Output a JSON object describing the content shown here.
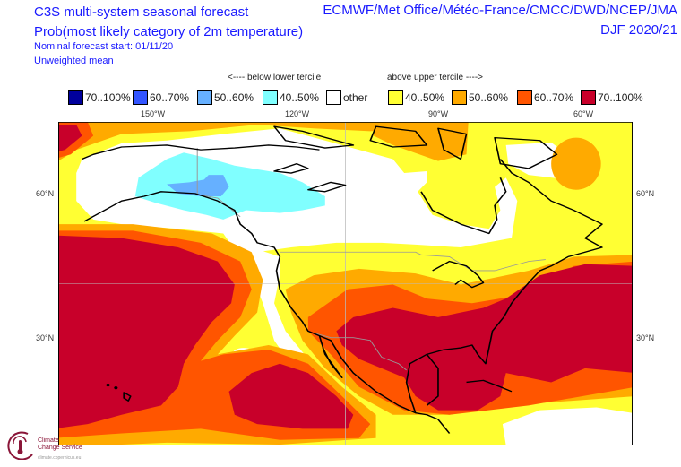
{
  "header": {
    "title": "C3S multi-system seasonal forecast",
    "subtitle": "Prob(most likely category of 2m temperature)",
    "start": "Nominal forecast start: 01/11/20",
    "mean": "Unweighted mean",
    "centres": "ECMWF/Met Office/Météo-France/CMCC/DWD/NCEP/JMA",
    "season": "DJF 2020/21"
  },
  "legend": {
    "below_label": "<---- below lower tercile",
    "above_label": "above upper tercile ---->",
    "items": [
      {
        "label": "70..100%",
        "color": "#00009c"
      },
      {
        "label": "60..70%",
        "color": "#3355ff"
      },
      {
        "label": "50..60%",
        "color": "#66b0ff"
      },
      {
        "label": "40..50%",
        "color": "#80ffff"
      },
      {
        "label": "other",
        "color": "#ffffff"
      },
      {
        "label": "40..50%",
        "color": "#ffff33"
      },
      {
        "label": "50..60%",
        "color": "#ffaa00"
      },
      {
        "label": "60..70%",
        "color": "#ff5500"
      },
      {
        "label": "70..100%",
        "color": "#c8002a"
      }
    ]
  },
  "axes": {
    "lon": [
      "150°W",
      "120°W",
      "90°W",
      "60°W"
    ],
    "lat": [
      "60°N",
      "30°N"
    ]
  },
  "logo": {
    "text": "Climate Change Service",
    "sub": "climate.copernicus.eu"
  }
}
